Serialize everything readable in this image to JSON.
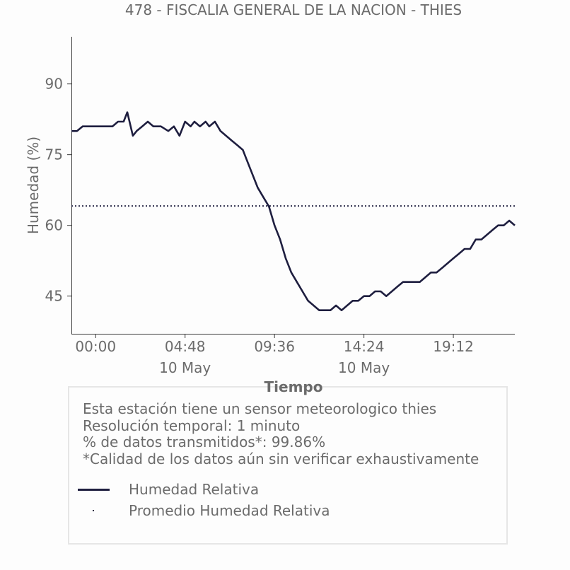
{
  "chart_data": {
    "type": "line",
    "title": "478 - FISCALIA GENERAL DE LA NACION - THIES",
    "xlabel": "Tiempo",
    "ylabel": "Humedad (%)",
    "ylim": [
      37,
      100
    ],
    "xlim": [
      -1.3,
      22.5
    ],
    "y_ticks": [
      45,
      60,
      75,
      90
    ],
    "x_ticks": [
      {
        "x": 0.0,
        "label": "00:00",
        "sublabel": ""
      },
      {
        "x": 4.8,
        "label": "04:48",
        "sublabel": "10 May"
      },
      {
        "x": 9.6,
        "label": "09:36",
        "sublabel": ""
      },
      {
        "x": 14.4,
        "label": "14:24",
        "sublabel": "10 May"
      },
      {
        "x": 19.2,
        "label": "19:12",
        "sublabel": ""
      }
    ],
    "grid": false,
    "series": [
      {
        "name": "Humedad Relativa",
        "style": "solid",
        "color": "#1e1e3f",
        "x": [
          -1.3,
          -1.0,
          -0.7,
          -0.4,
          -0.1,
          0.2,
          0.5,
          0.9,
          1.2,
          1.5,
          1.7,
          2.0,
          2.2,
          2.5,
          2.8,
          3.1,
          3.5,
          3.9,
          4.2,
          4.5,
          4.8,
          5.1,
          5.3,
          5.6,
          5.9,
          6.1,
          6.4,
          6.7,
          7.0,
          7.3,
          7.6,
          7.9,
          8.1,
          8.4,
          8.7,
          9.0,
          9.3,
          9.6,
          9.9,
          10.2,
          10.5,
          10.8,
          11.1,
          11.4,
          11.7,
          12.0,
          12.3,
          12.6,
          12.9,
          13.2,
          13.5,
          13.8,
          14.1,
          14.4,
          14.7,
          15.0,
          15.3,
          15.6,
          15.9,
          16.2,
          16.5,
          16.8,
          17.1,
          17.4,
          17.7,
          18.0,
          18.3,
          18.6,
          18.9,
          19.2,
          19.5,
          19.8,
          20.1,
          20.4,
          20.7,
          21.0,
          21.3,
          21.6,
          21.9,
          22.2,
          22.5
        ],
        "y": [
          80,
          80,
          81,
          81,
          81,
          81,
          81,
          81,
          82,
          82,
          84,
          79,
          80,
          81,
          82,
          81,
          81,
          80,
          81,
          79,
          82,
          81,
          82,
          81,
          82,
          81,
          82,
          80,
          79,
          78,
          77,
          76,
          74,
          71,
          68,
          66,
          64,
          60,
          57,
          53,
          50,
          48,
          46,
          44,
          43,
          42,
          42,
          42,
          43,
          42,
          43,
          44,
          44,
          45,
          45,
          46,
          46,
          45,
          46,
          47,
          48,
          48,
          48,
          48,
          49,
          50,
          50,
          51,
          52,
          53,
          54,
          55,
          55,
          57,
          57,
          58,
          59,
          60,
          60,
          61,
          60
        ]
      },
      {
        "name": "Promedio Humedad Relativa",
        "style": "dotted",
        "color": "#1e1e3f",
        "x": [
          -1.3,
          22.5
        ],
        "y": [
          64.1,
          64.1
        ]
      }
    ],
    "legend": "bottom"
  },
  "info": {
    "lines": [
      "Esta estación tiene un sensor meteorologico thies",
      "Resolución temporal: 1 minuto",
      "% de datos transmitidos*: 99.86%",
      "*Calidad de los datos aún sin verificar exhaustivamente"
    ]
  },
  "legend": {
    "items": [
      {
        "label": "Humedad Relativa"
      },
      {
        "label": "Promedio Humedad Relativa"
      }
    ]
  }
}
